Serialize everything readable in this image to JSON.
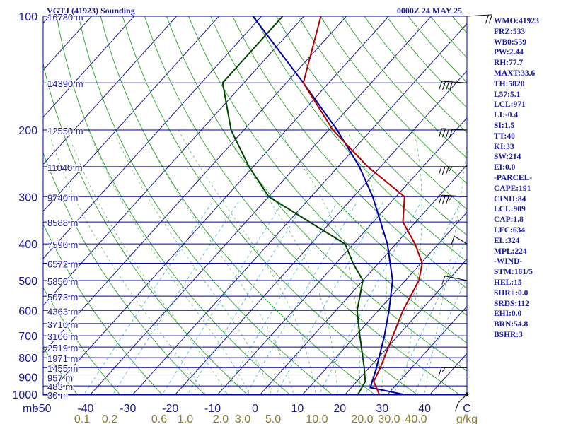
{
  "header": {
    "station": "VGTJ (41923) Sounding",
    "time": "0000Z 24 MAY 25"
  },
  "indices": [
    "WMO:41923",
    "FRZ:533",
    "WB0:559",
    "PW:2.44",
    "RH:77.7",
    "MAXT:33.6",
    "TH:5820",
    "L57:5.1",
    "LCL:971",
    "LI:-0.4",
    "SI:1.5",
    "TT:40",
    "KI:33",
    "SW:214",
    "EI:0.0",
    "-PARCEL-",
    "CAPE:191",
    "CINH:84",
    "LCL:909",
    "CAP:1.8",
    "LFC:634",
    "EL:324",
    "MPL:224",
    "-WIND-",
    "STM:181/5",
    "HEL:15",
    "SHR+:0.0",
    "SRDS:112",
    "EHI:0.0",
    "BRN:54.8",
    "BSHR:3"
  ],
  "colors": {
    "isobar": "#0000a0",
    "isotherm": "#1a1a8c",
    "dry_adiabat": "#2aa02a",
    "moist_adiabat": "#2aa02a",
    "mixing_ratio": "#4fb6e0",
    "temperature": "#b00000",
    "dewpoint": "#004400",
    "parcel": "#0000a0",
    "axis_label": "#1a1a8c",
    "mixing_label": "#8c7a30"
  },
  "chart_data": {
    "type": "skew-t",
    "pressure_ticks": [
      "100",
      "200",
      "300",
      "400",
      "500",
      "600",
      "700",
      "800",
      "900",
      "1000"
    ],
    "height_labels": [
      {
        "p": 100,
        "label": "16780 m"
      },
      {
        "p": 150,
        "label": "14390 m"
      },
      {
        "p": 200,
        "label": "12550 m"
      },
      {
        "p": 250,
        "label": "11040 m"
      },
      {
        "p": 300,
        "label": "9740 m"
      },
      {
        "p": 350,
        "label": "8588 m"
      },
      {
        "p": 400,
        "label": "7590 m"
      },
      {
        "p": 450,
        "label": "6572 m"
      },
      {
        "p": 500,
        "label": "5850 m"
      },
      {
        "p": 550,
        "label": "5073 m"
      },
      {
        "p": 600,
        "label": "4363 m"
      },
      {
        "p": 650,
        "label": "3710 m"
      },
      {
        "p": 700,
        "label": "3106 m"
      },
      {
        "p": 750,
        "label": "2519 m"
      },
      {
        "p": 800,
        "label": "1971 m"
      },
      {
        "p": 850,
        "label": "1455 m"
      },
      {
        "p": 900,
        "label": "957 m"
      },
      {
        "p": 950,
        "label": "483 m"
      },
      {
        "p": 1000,
        "label": "30 m"
      }
    ],
    "temp_ticks": [
      "-50",
      "-40",
      "-30",
      "-20",
      "-10",
      "0",
      "10",
      "20",
      "30",
      "40"
    ],
    "temp_unit": "C",
    "xlim": [
      -50,
      50
    ],
    "mixing_ratio_ticks": [
      "0.1",
      "0.2",
      "0.6",
      "1.0",
      "2.0",
      "3.0",
      "5.0",
      "10.0",
      "20.0",
      "30.0",
      "40.0"
    ],
    "mixing_ratio_unit": "g/kg",
    "temperature_profile": [
      {
        "p": 1000,
        "t": 28
      },
      {
        "p": 925,
        "t": 24
      },
      {
        "p": 850,
        "t": 22.6
      },
      {
        "p": 700,
        "t": 18.8
      },
      {
        "p": 600,
        "t": 15.8
      },
      {
        "p": 500,
        "t": 13.2
      },
      {
        "p": 450,
        "t": 10.3
      },
      {
        "p": 400,
        "t": 4.5
      },
      {
        "p": 350,
        "t": -3
      },
      {
        "p": 300,
        "t": -8
      },
      {
        "p": 250,
        "t": -23
      },
      {
        "p": 200,
        "t": -39
      },
      {
        "p": 150,
        "t": -56
      },
      {
        "p": 100,
        "t": -66
      }
    ],
    "dewpoint_profile": [
      {
        "p": 1000,
        "t": 23
      },
      {
        "p": 925,
        "t": 22
      },
      {
        "p": 850,
        "t": 18.8
      },
      {
        "p": 700,
        "t": 11
      },
      {
        "p": 600,
        "t": 5
      },
      {
        "p": 500,
        "t": 0
      },
      {
        "p": 450,
        "t": -6
      },
      {
        "p": 400,
        "t": -12
      },
      {
        "p": 350,
        "t": -25
      },
      {
        "p": 300,
        "t": -40
      },
      {
        "p": 250,
        "t": -51
      },
      {
        "p": 200,
        "t": -63
      },
      {
        "p": 150,
        "t": -75
      },
      {
        "p": 100,
        "t": -75
      }
    ],
    "parcel_profile": [
      {
        "p": 1000,
        "t": 33.6
      },
      {
        "p": 960,
        "t": 24.5
      },
      {
        "p": 850,
        "t": 21.7
      },
      {
        "p": 700,
        "t": 16.8
      },
      {
        "p": 600,
        "t": 12.5
      },
      {
        "p": 500,
        "t": 7
      },
      {
        "p": 400,
        "t": -2
      },
      {
        "p": 300,
        "t": -15.5
      },
      {
        "p": 250,
        "t": -25
      },
      {
        "p": 200,
        "t": -38
      },
      {
        "p": 150,
        "t": -56
      },
      {
        "p": 100,
        "t": -82
      }
    ],
    "wind_barbs": [
      {
        "p": 1000,
        "dir": 200,
        "spd": 10
      },
      {
        "p": 850,
        "dir": 270,
        "spd": 15
      },
      {
        "p": 500,
        "dir": 300,
        "spd": 10
      },
      {
        "p": 400,
        "dir": 330,
        "spd": 10
      },
      {
        "p": 300,
        "dir": 280,
        "spd": 35
      },
      {
        "p": 250,
        "dir": 270,
        "spd": 35
      },
      {
        "p": 200,
        "dir": 280,
        "spd": 40
      },
      {
        "p": 150,
        "dir": 280,
        "spd": 40
      },
      {
        "p": 100,
        "dir": 80,
        "spd": 20
      }
    ]
  }
}
